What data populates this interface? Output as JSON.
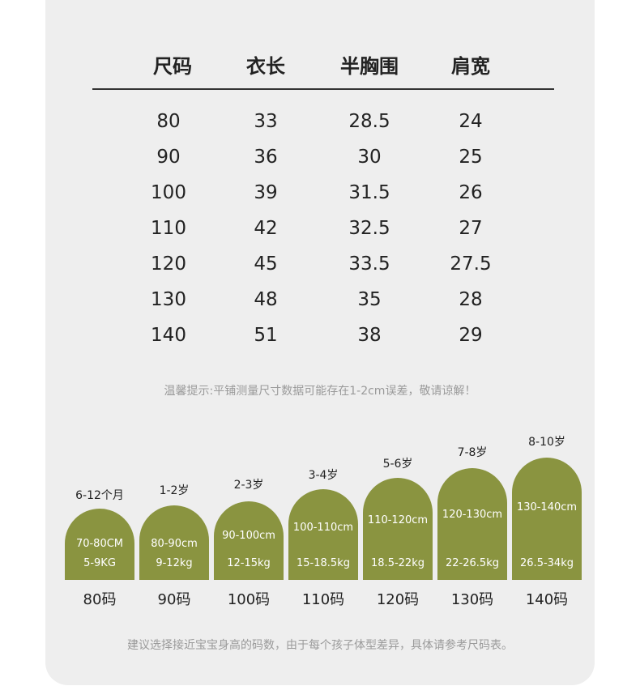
{
  "table": {
    "headers": [
      "尺码",
      "衣长",
      "半胸围",
      "肩宽"
    ],
    "rows": [
      [
        "80",
        "33",
        "28.5",
        "24"
      ],
      [
        "90",
        "36",
        "30",
        "25"
      ],
      [
        "100",
        "39",
        "31.5",
        "26"
      ],
      [
        "110",
        "42",
        "32.5",
        "27"
      ],
      [
        "120",
        "45",
        "33.5",
        "27.5"
      ],
      [
        "130",
        "48",
        "35",
        "28"
      ],
      [
        "140",
        "51",
        "38",
        "29"
      ]
    ]
  },
  "tip": "温馨提示:平铺测量尺寸数据可能存在1-2cm误差，敬请谅解！",
  "sizes": [
    {
      "age": "6-12个月",
      "height": "70-80CM",
      "weight": "5-9KG",
      "size": "80码"
    },
    {
      "age": "1-2岁",
      "height": "80-90cm",
      "weight": "9-12kg",
      "size": "90码"
    },
    {
      "age": "2-3岁",
      "height": "90-100cm",
      "weight": "12-15kg",
      "size": "100码"
    },
    {
      "age": "3-4岁",
      "height": "100-110cm",
      "weight": "15-18.5kg",
      "size": "110码"
    },
    {
      "age": "5-6岁",
      "height": "110-120cm",
      "weight": "18.5-22kg",
      "size": "120码"
    },
    {
      "age": "7-8岁",
      "height": "120-130cm",
      "weight": "22-26.5kg",
      "size": "130码"
    },
    {
      "age": "8-10岁",
      "height": "130-140cm",
      "weight": "26.5-34kg",
      "size": "140码"
    }
  ],
  "footer_note": "建议选择接近宝宝身高的码数，由于每个孩子体型差异，具体请参考尺码表。",
  "colors": {
    "arch": "#8a9440",
    "card": "#eeeeee"
  }
}
